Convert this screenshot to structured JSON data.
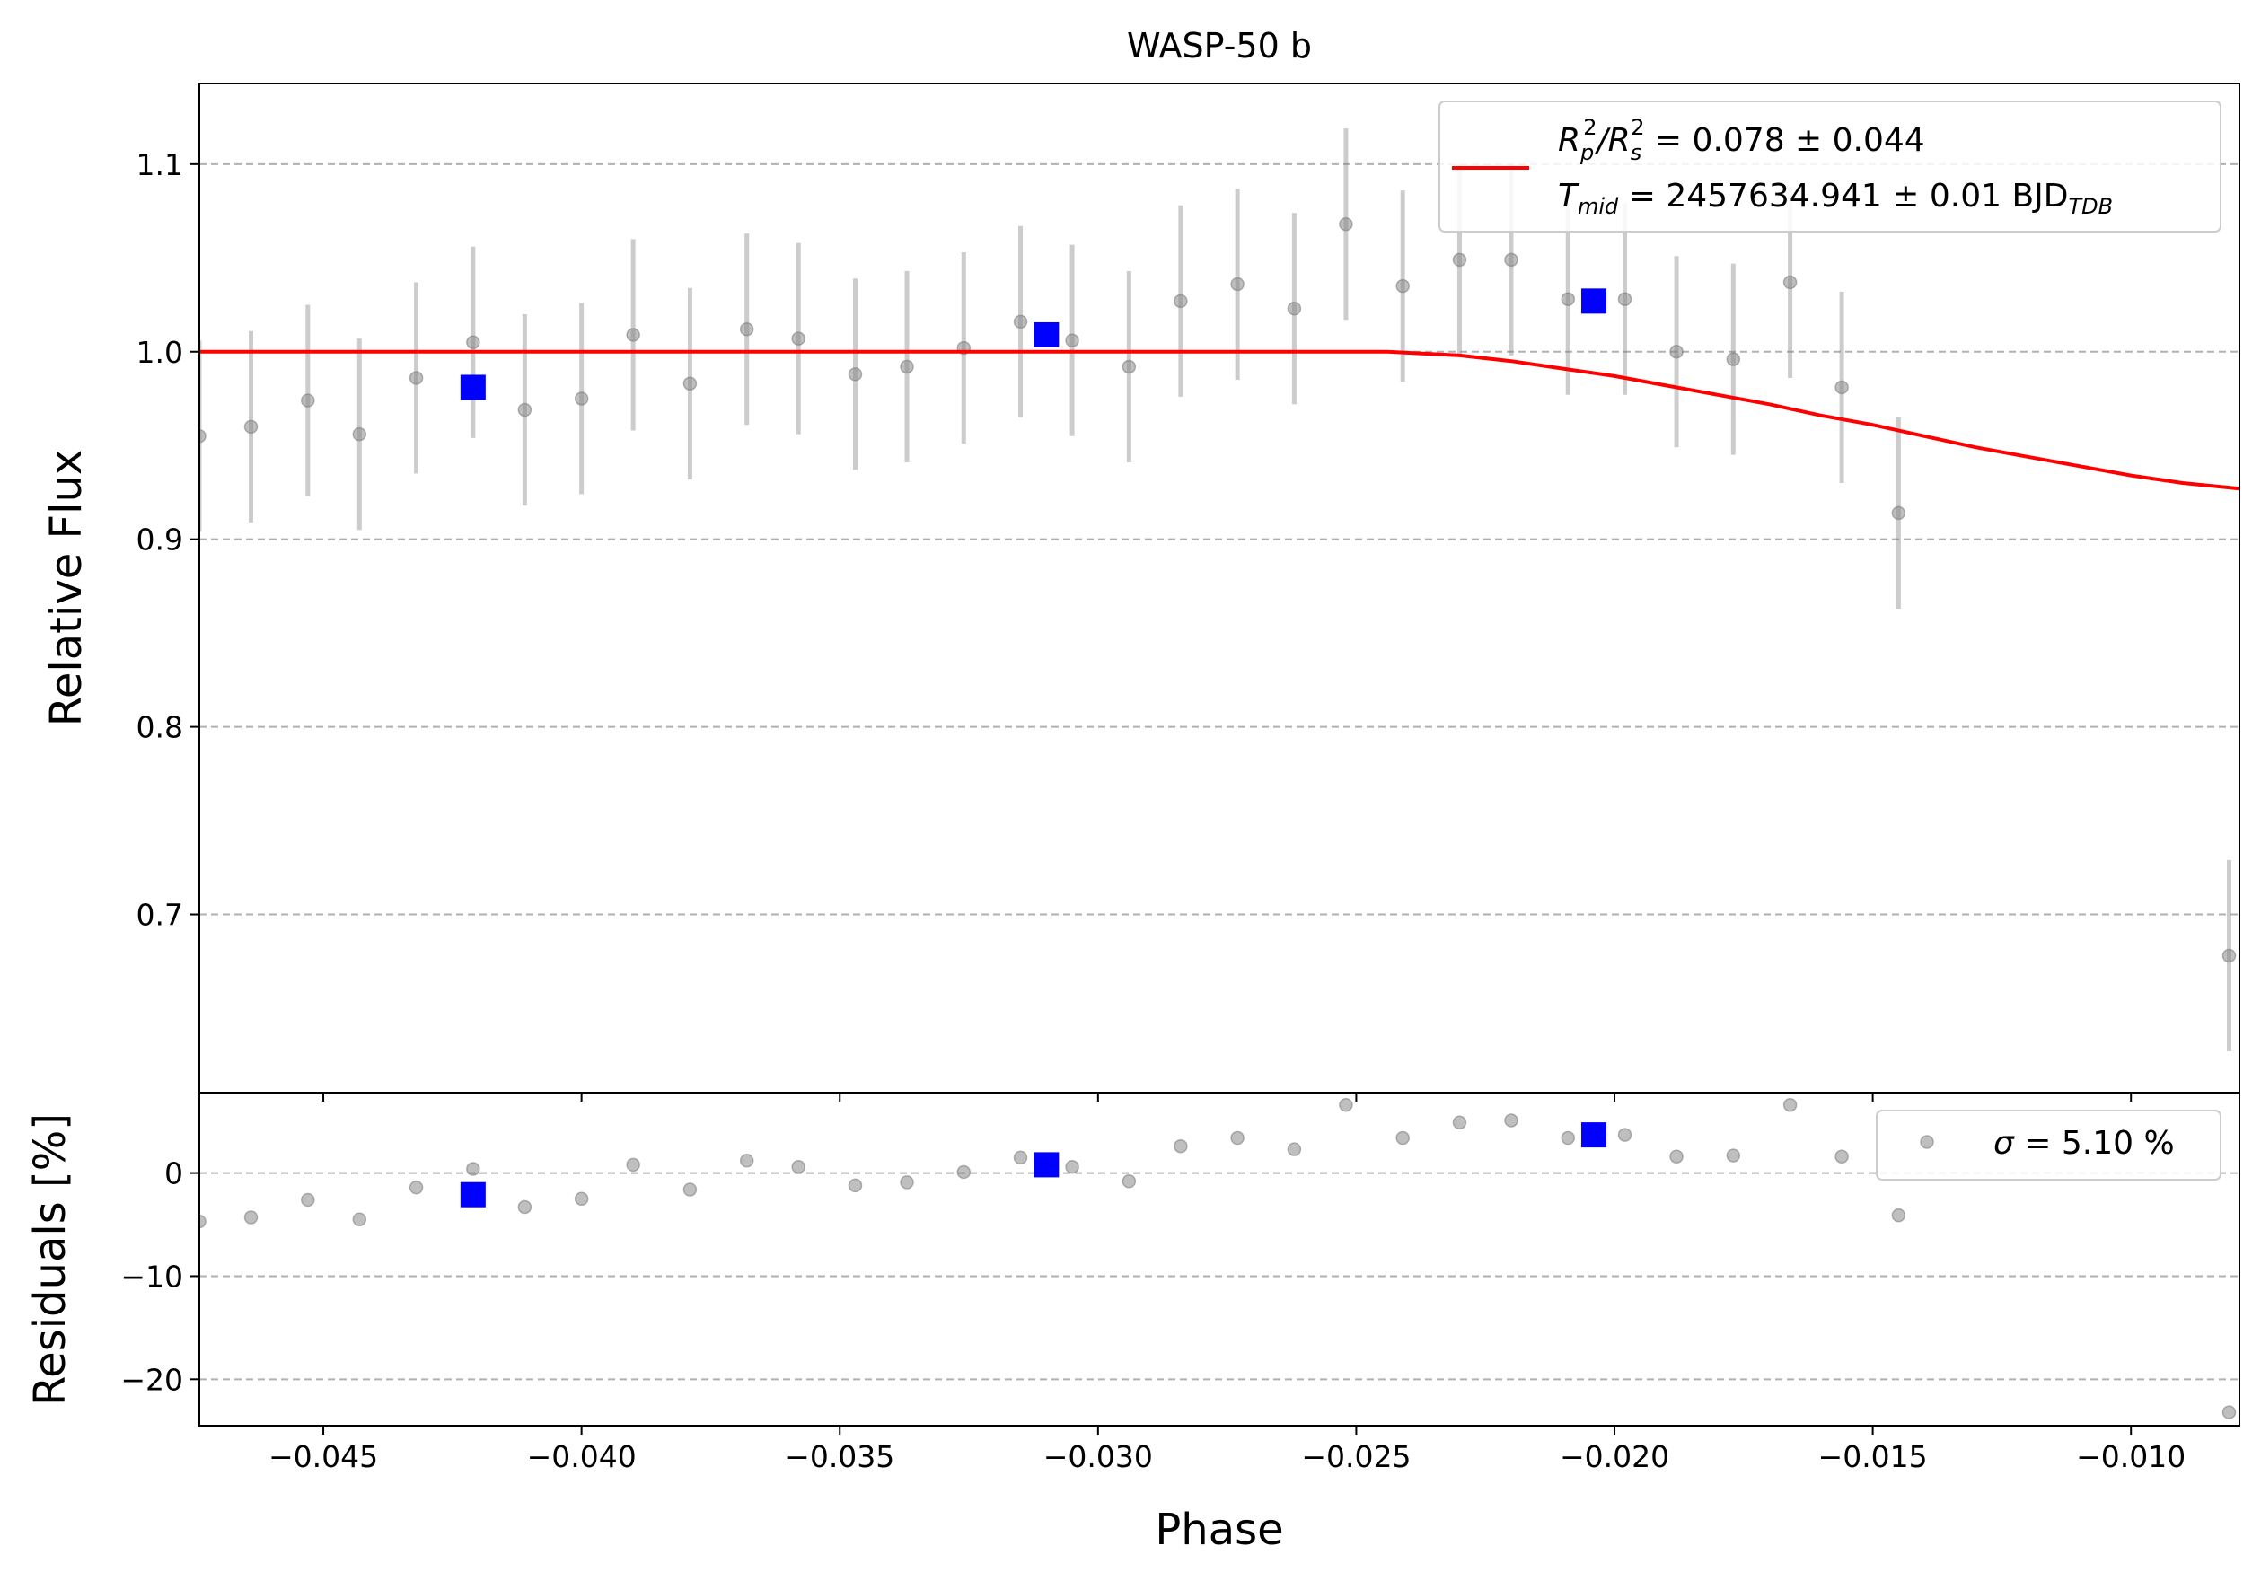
{
  "chart_data": [
    {
      "type": "scatter",
      "panel": "main",
      "title": "WASP-50 b",
      "xlabel": "",
      "ylabel": "Relative Flux",
      "xlim": [
        -0.0474,
        -0.0079
      ],
      "ylim": [
        0.605,
        1.143
      ],
      "xticks": [
        -0.045,
        -0.04,
        -0.035,
        -0.03,
        -0.025,
        -0.02,
        -0.015,
        -0.01
      ],
      "xtick_labels": [
        "",
        "",
        "",
        "",
        "",
        "",
        "",
        ""
      ],
      "yticks": [
        0.7,
        0.8,
        0.9,
        1.0,
        1.1
      ],
      "ytick_labels": [
        "0.7",
        "0.8",
        "0.9",
        "1.0",
        "1.1"
      ],
      "grid": "horizontal-dashed",
      "legend_position": "top-right",
      "series": [
        {
          "name": "",
          "kind": "data",
          "color": "#808080",
          "x": [
            -0.0474,
            -0.0464,
            -0.0453,
            -0.0443,
            -0.0432,
            -0.0421,
            -0.0411,
            -0.04,
            -0.039,
            -0.0379,
            -0.0368,
            -0.0358,
            -0.0347,
            -0.0337,
            -0.0326,
            -0.0315,
            -0.0305,
            -0.0294,
            -0.0284,
            -0.0273,
            -0.0262,
            -0.0252,
            -0.0241,
            -0.023,
            -0.022,
            -0.0209,
            -0.0198,
            -0.0188,
            -0.0177,
            -0.0166,
            -0.0156,
            -0.0145,
            -0.0081
          ],
          "y": [
            0.955,
            0.96,
            0.974,
            0.956,
            0.986,
            1.005,
            0.969,
            0.975,
            1.009,
            0.983,
            1.012,
            1.007,
            0.988,
            0.992,
            1.002,
            1.016,
            1.006,
            0.992,
            1.027,
            1.036,
            1.023,
            1.068,
            1.035,
            1.049,
            1.049,
            1.028,
            1.028,
            1.0,
            0.996,
            1.037,
            0.981,
            0.914,
            0.678
          ],
          "yerr": [
            0.051,
            0.051,
            0.051,
            0.051,
            0.051,
            0.051,
            0.051,
            0.051,
            0.051,
            0.051,
            0.051,
            0.051,
            0.051,
            0.051,
            0.051,
            0.051,
            0.051,
            0.051,
            0.051,
            0.051,
            0.051,
            0.051,
            0.051,
            0.051,
            0.051,
            0.051,
            0.051,
            0.051,
            0.051,
            0.051,
            0.051,
            0.051,
            0.051
          ]
        },
        {
          "name": "",
          "kind": "binned",
          "color": "#0000ff",
          "x": [
            -0.0421,
            -0.031,
            -0.0204
          ],
          "y": [
            0.981,
            1.009,
            1.027
          ],
          "yerr": [
            0.003,
            0.003,
            0.006
          ]
        },
        {
          "name": "",
          "kind": "model",
          "color": "#ff0000",
          "x": [
            -0.0474,
            -0.0244,
            -0.023,
            -0.022,
            -0.021,
            -0.02,
            -0.019,
            -0.018,
            -0.017,
            -0.016,
            -0.015,
            -0.014,
            -0.013,
            -0.012,
            -0.011,
            -0.01,
            -0.009,
            -0.0079
          ],
          "y": [
            1.0,
            1.0,
            0.998,
            0.995,
            0.991,
            0.987,
            0.982,
            0.977,
            0.972,
            0.966,
            0.961,
            0.955,
            0.949,
            0.944,
            0.939,
            0.934,
            0.93,
            0.927
          ]
        }
      ],
      "legend": {
        "line1_lead": "R",
        "line1_sub1": "p",
        "line1_sup1": "2",
        "line1_mid": "/R",
        "line1_sub2": "s",
        "line1_sup2": "2",
        "line1_tail": " = 0.078 ± 0.044",
        "line2_lead": "T",
        "line2_sub": "mid",
        "line2_mid": " = 2457634.941 ± 0.01 BJD",
        "line2_sub2": "TDB"
      }
    },
    {
      "type": "scatter",
      "panel": "residuals",
      "title": "",
      "xlabel": "Phase",
      "ylabel": "Residuals [%]",
      "xlim": [
        -0.0474,
        -0.0079
      ],
      "ylim": [
        -24.5,
        7.8
      ],
      "xticks": [
        -0.045,
        -0.04,
        -0.035,
        -0.03,
        -0.025,
        -0.02,
        -0.015,
        -0.01
      ],
      "xtick_labels": [
        "−0.045",
        "−0.040",
        "−0.035",
        "−0.030",
        "−0.025",
        "−0.020",
        "−0.015",
        "−0.010"
      ],
      "yticks": [
        -20,
        -10,
        0
      ],
      "ytick_labels": [
        "−20",
        "−10",
        "0"
      ],
      "grid": "horizontal-dashed",
      "legend_position": "top-right",
      "series": [
        {
          "name": "",
          "kind": "data",
          "color": "#808080",
          "x": [
            -0.0474,
            -0.0464,
            -0.0453,
            -0.0443,
            -0.0432,
            -0.0421,
            -0.0411,
            -0.04,
            -0.039,
            -0.0379,
            -0.0368,
            -0.0358,
            -0.0347,
            -0.0337,
            -0.0326,
            -0.0315,
            -0.0305,
            -0.0294,
            -0.0284,
            -0.0273,
            -0.0262,
            -0.0252,
            -0.0241,
            -0.023,
            -0.022,
            -0.0209,
            -0.0198,
            -0.0188,
            -0.0177,
            -0.0166,
            -0.0156,
            -0.0145,
            -0.0081
          ],
          "y": [
            -4.7,
            -4.3,
            -2.6,
            -4.5,
            -1.4,
            0.4,
            -3.3,
            -2.5,
            0.8,
            -1.6,
            1.2,
            0.6,
            -1.2,
            -0.9,
            0.1,
            1.5,
            0.6,
            -0.8,
            2.6,
            3.4,
            2.3,
            6.6,
            3.4,
            4.9,
            5.1,
            3.4,
            3.7,
            1.6,
            1.7,
            6.6,
            1.6,
            -4.1,
            -23.2
          ]
        },
        {
          "name": "",
          "kind": "binned",
          "color": "#0000ff",
          "x": [
            -0.0421,
            -0.031,
            -0.0204
          ],
          "y": [
            -2.1,
            0.8,
            3.7
          ]
        }
      ],
      "legend": {
        "sigma_symbol": "σ",
        "sigma_text": " = 5.10 %"
      }
    }
  ]
}
